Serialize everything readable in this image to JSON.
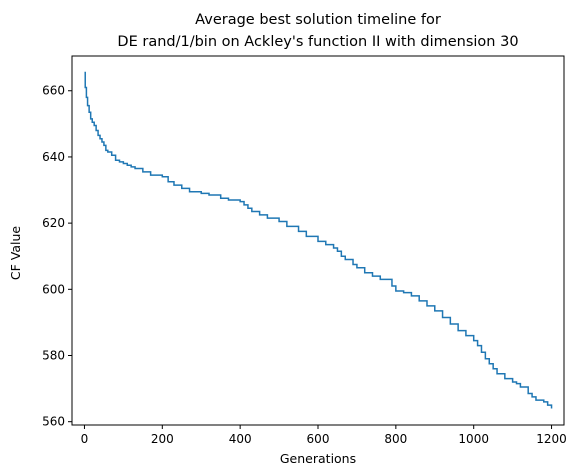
{
  "colors": {
    "series": "#1f77b4",
    "axis": "#000000",
    "background": "#ffffff"
  },
  "chart_data": {
    "type": "line",
    "title_lines": [
      "Average best solution timeline for",
      "DE rand/1/bin on Ackley's function II with dimension 30"
    ],
    "xlabel": "Generations",
    "ylabel": "CF Value",
    "xlim": [
      -32,
      1232
    ],
    "ylim": [
      559,
      670.5
    ],
    "xticks": [
      0,
      200,
      400,
      600,
      800,
      1000,
      1200
    ],
    "yticks": [
      560,
      580,
      600,
      620,
      640,
      660
    ],
    "grid": false,
    "series": [
      {
        "x": [
          0,
          2,
          5,
          8,
          12,
          16,
          20,
          25,
          30,
          35,
          40,
          45,
          50,
          55,
          60,
          70,
          80,
          90,
          100,
          110,
          120,
          130,
          150,
          170,
          200,
          215,
          230,
          250,
          270,
          300,
          320,
          350,
          370,
          400,
          410,
          420,
          430,
          450,
          470,
          500,
          520,
          550,
          570,
          600,
          620,
          640,
          650,
          660,
          670,
          690,
          700,
          720,
          740,
          760,
          790,
          800,
          820,
          840,
          860,
          880,
          900,
          920,
          940,
          960,
          980,
          1000,
          1010,
          1020,
          1030,
          1040,
          1050,
          1060,
          1080,
          1100,
          1110,
          1120,
          1140,
          1150,
          1160,
          1180,
          1190,
          1200
        ],
        "y": [
          665.5,
          661.0,
          658.0,
          655.5,
          653.5,
          651.5,
          650.5,
          649.5,
          648.0,
          646.5,
          645.5,
          644.5,
          643.5,
          642.0,
          641.5,
          640.5,
          639.0,
          638.5,
          638.0,
          637.5,
          637.0,
          636.5,
          635.5,
          634.5,
          634.0,
          632.5,
          631.5,
          630.5,
          629.5,
          629.0,
          628.5,
          627.5,
          627.0,
          626.5,
          625.5,
          624.5,
          623.5,
          622.5,
          621.5,
          620.5,
          619.0,
          617.5,
          616.0,
          614.5,
          613.5,
          612.5,
          611.5,
          610.0,
          609.0,
          607.5,
          606.5,
          605.0,
          604.0,
          603.0,
          601.0,
          599.5,
          599.0,
          598.0,
          596.5,
          595.0,
          593.5,
          591.5,
          589.5,
          587.5,
          586.0,
          584.5,
          583.0,
          581.0,
          579.0,
          577.5,
          576.0,
          574.5,
          573.0,
          572.0,
          571.5,
          570.5,
          568.5,
          567.5,
          566.5,
          566.0,
          565.0,
          564.0
        ]
      }
    ]
  }
}
